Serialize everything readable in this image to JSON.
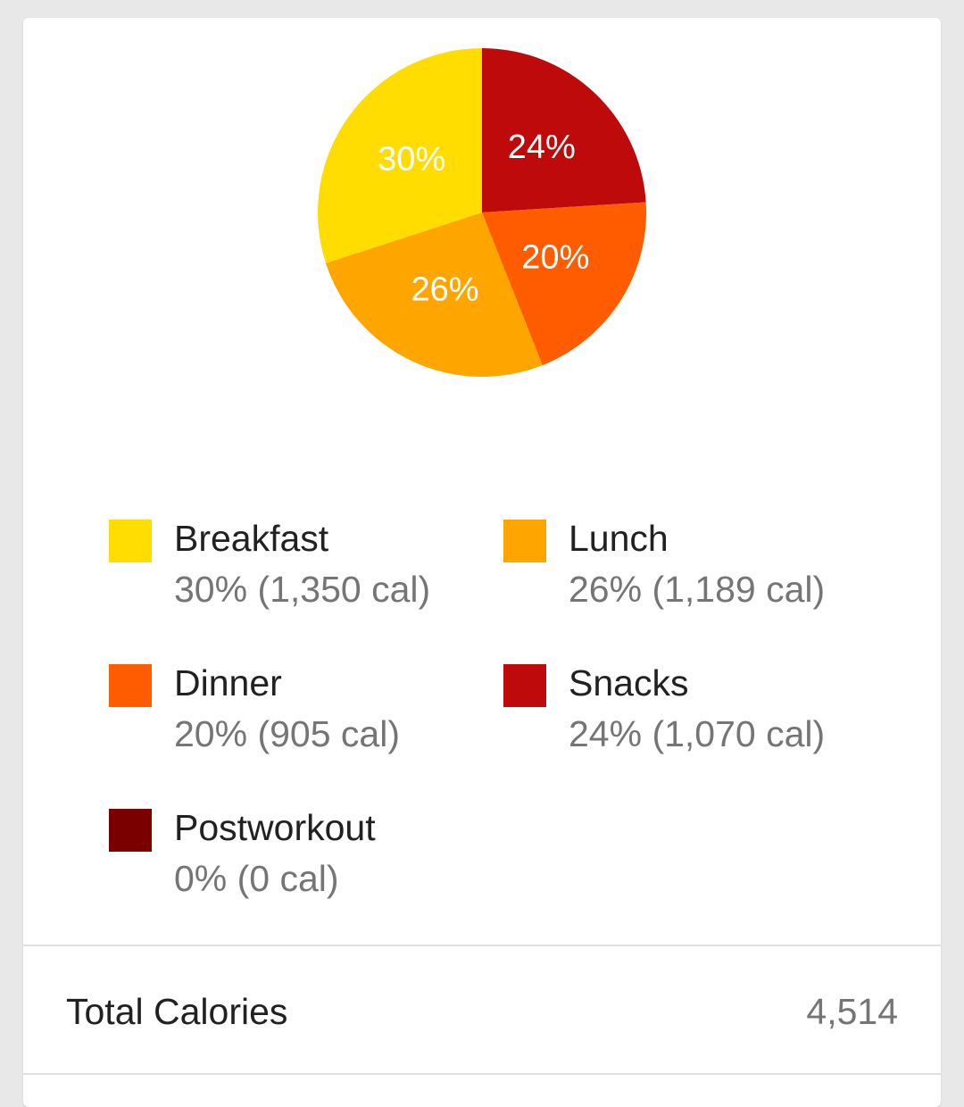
{
  "chart_data": {
    "type": "pie",
    "slices": [
      {
        "label": "Breakfast",
        "value": 30,
        "color": "#FFDD00"
      },
      {
        "label": "Lunch",
        "value": 26,
        "color": "#FFA500"
      },
      {
        "label": "Dinner",
        "value": 20,
        "color": "#FF5C00"
      },
      {
        "label": "Snacks",
        "value": 24,
        "color": "#BE0A0A"
      },
      {
        "label": "Postworkout",
        "value": 0,
        "color": "#7A0000"
      }
    ],
    "slice_labels": [
      "30%",
      "26%",
      "20%",
      "24%"
    ]
  },
  "legend": [
    {
      "name": "Breakfast",
      "value": "30% (1,350 cal)",
      "color": "#FFDD00"
    },
    {
      "name": "Lunch",
      "value": "26% (1,189 cal)",
      "color": "#FFA500"
    },
    {
      "name": "Dinner",
      "value": "20% (905 cal)",
      "color": "#FF5C00"
    },
    {
      "name": "Snacks",
      "value": "24% (1,070 cal)",
      "color": "#BE0A0A"
    },
    {
      "name": "Postworkout",
      "value": "0% (0 cal)",
      "color": "#7A0000"
    }
  ],
  "total": {
    "label": "Total Calories",
    "value": "4,514"
  }
}
